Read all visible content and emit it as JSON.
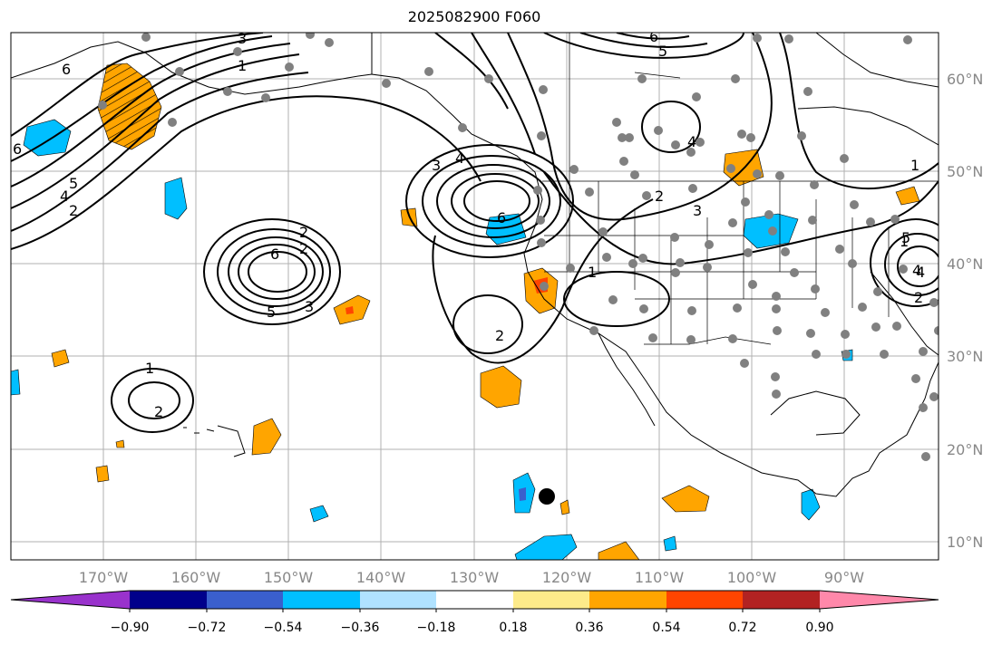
{
  "title": "2025082900 F060",
  "lon_labels": [
    "170°W",
    "160°W",
    "150°W",
    "140°W",
    "130°W",
    "120°W",
    "110°W",
    "100°W",
    "90°W"
  ],
  "lat_labels": [
    "60°N",
    "50°N",
    "40°N",
    "30°N",
    "20°N",
    "10°N"
  ],
  "colorbar": {
    "ticks": [
      "−0.90",
      "−0.72",
      "−0.54",
      "−0.36",
      "−0.18",
      "0.18",
      "0.36",
      "0.54",
      "0.72",
      "0.90"
    ],
    "colors": [
      "#9932cc",
      "#00008b",
      "#3a5fcd",
      "#00bfff",
      "#b0e2ff",
      "#ffffff",
      "#fdeb8a",
      "#ffa500",
      "#ff4500",
      "#b22222",
      "#ff88aa"
    ]
  },
  "contour_labels": [
    "6",
    "3",
    "1",
    "5",
    "4",
    "2",
    "6",
    "2",
    "2",
    "6",
    "5",
    "3",
    "3",
    "4",
    "6",
    "2",
    "1",
    "2",
    "1",
    "2",
    "3",
    "4",
    "6",
    "5",
    "4",
    "1",
    "1",
    "2",
    "4",
    "5"
  ],
  "colors": {
    "positive": "#ffa500",
    "negative": "#00bfff",
    "strong_positive": "#ff4500",
    "station": "#808080"
  }
}
